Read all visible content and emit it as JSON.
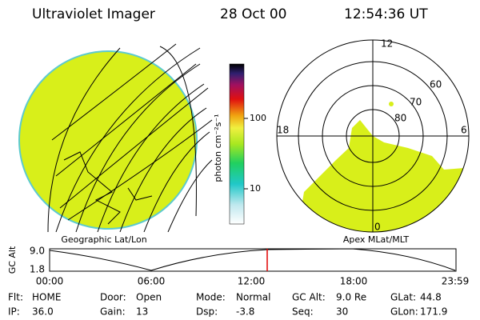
{
  "header": {
    "instrument": "Ultraviolet Imager",
    "date": "28 Oct 00",
    "time": "12:54:36 UT"
  },
  "colorbar": {
    "label": "photon cm⁻²s⁻¹",
    "ticks": [
      "100",
      "10"
    ]
  },
  "left_panel": {
    "caption": "Geographic Lat/Lon"
  },
  "right_panel": {
    "caption": "Apex MLat/MLT",
    "mlt_labels": [
      "12",
      "6",
      "0",
      "18"
    ],
    "lat_labels": [
      "80",
      "70",
      "60"
    ]
  },
  "altitude_plot": {
    "y_label": "GC Alt",
    "y_ticks": [
      "9.0",
      "1.8"
    ],
    "x_ticks": [
      "00:00",
      "06:00",
      "12:00",
      "18:00",
      "23:59"
    ]
  },
  "status": {
    "rows": [
      [
        {
          "label": "Flt:",
          "value": "HOME"
        },
        {
          "label": "Door:",
          "value": "Open"
        },
        {
          "label": "Mode:",
          "value": "Normal"
        },
        {
          "label": "GC Alt:",
          "value": "9.0 Re"
        },
        {
          "label": "GLat:",
          "value": "44.8"
        }
      ],
      [
        {
          "label": "IP:",
          "value": "36.0"
        },
        {
          "label": "Gain:",
          "value": "13"
        },
        {
          "label": "Dsp:",
          "value": "-3.8"
        },
        {
          "label": "Seq:",
          "value": "30"
        },
        {
          "label": "GLon:",
          "value": "171.9"
        }
      ]
    ]
  }
}
